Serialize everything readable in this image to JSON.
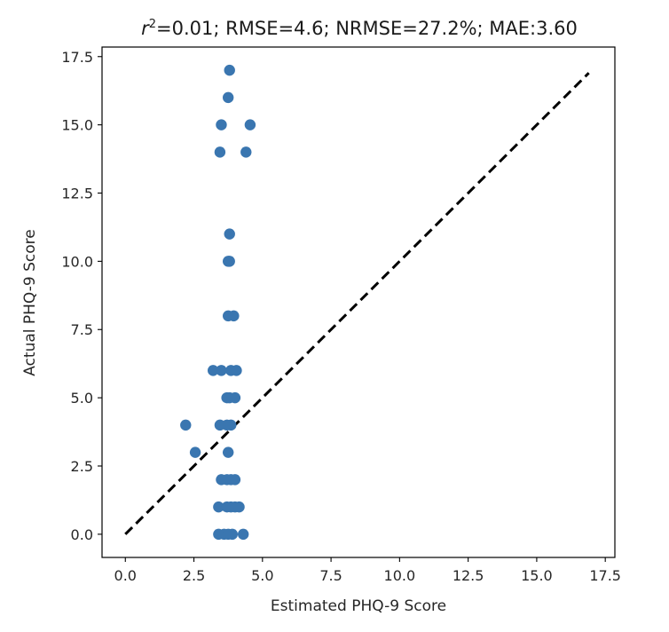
{
  "chart_data": {
    "type": "scatter",
    "title": "=0.01; RMSE=4.6; NRMSE=27.2%; MAE:3.60",
    "title_symbol": "r",
    "title_superscript": "2",
    "xlabel": "Estimated PHQ-9 Score",
    "ylabel": "Actual PHQ-9 Score",
    "xlim": [
      -0.85,
      17.85
    ],
    "ylim": [
      -0.85,
      17.85
    ],
    "xticks": [
      0.0,
      2.5,
      5.0,
      7.5,
      10.0,
      12.5,
      15.0,
      17.5
    ],
    "yticks": [
      0.0,
      2.5,
      5.0,
      7.5,
      10.0,
      12.5,
      15.0,
      17.5
    ],
    "xtick_labels": [
      "0.0",
      "2.5",
      "5.0",
      "7.5",
      "10.0",
      "12.5",
      "15.0",
      "17.5"
    ],
    "ytick_labels": [
      "0.0",
      "2.5",
      "5.0",
      "7.5",
      "10.0",
      "12.5",
      "15.0",
      "17.5"
    ],
    "grid": false,
    "point_color": "#3a76b0",
    "line_color": "#000000",
    "identity_line": {
      "x": [
        0,
        16.9
      ],
      "y": [
        0,
        16.9
      ],
      "style": "dashed"
    },
    "points": [
      {
        "x": 3.8,
        "y": 17
      },
      {
        "x": 3.75,
        "y": 16
      },
      {
        "x": 3.5,
        "y": 15
      },
      {
        "x": 4.55,
        "y": 15
      },
      {
        "x": 3.45,
        "y": 14
      },
      {
        "x": 4.4,
        "y": 14
      },
      {
        "x": 3.8,
        "y": 11
      },
      {
        "x": 3.75,
        "y": 10
      },
      {
        "x": 3.8,
        "y": 10
      },
      {
        "x": 3.75,
        "y": 8
      },
      {
        "x": 3.95,
        "y": 8
      },
      {
        "x": 3.2,
        "y": 6
      },
      {
        "x": 3.5,
        "y": 6
      },
      {
        "x": 3.85,
        "y": 6
      },
      {
        "x": 4.05,
        "y": 6
      },
      {
        "x": 3.7,
        "y": 5
      },
      {
        "x": 3.8,
        "y": 5
      },
      {
        "x": 4.0,
        "y": 5
      },
      {
        "x": 2.2,
        "y": 4
      },
      {
        "x": 3.45,
        "y": 4
      },
      {
        "x": 3.7,
        "y": 4
      },
      {
        "x": 3.85,
        "y": 4
      },
      {
        "x": 2.55,
        "y": 3
      },
      {
        "x": 3.75,
        "y": 3
      },
      {
        "x": 3.5,
        "y": 2
      },
      {
        "x": 3.7,
        "y": 2
      },
      {
        "x": 3.85,
        "y": 2
      },
      {
        "x": 4.0,
        "y": 2
      },
      {
        "x": 3.4,
        "y": 1
      },
      {
        "x": 3.7,
        "y": 1
      },
      {
        "x": 3.85,
        "y": 1
      },
      {
        "x": 4.0,
        "y": 1
      },
      {
        "x": 4.15,
        "y": 1
      },
      {
        "x": 3.4,
        "y": 0
      },
      {
        "x": 3.6,
        "y": 0
      },
      {
        "x": 3.75,
        "y": 0
      },
      {
        "x": 3.9,
        "y": 0
      },
      {
        "x": 4.3,
        "y": 0
      }
    ]
  }
}
